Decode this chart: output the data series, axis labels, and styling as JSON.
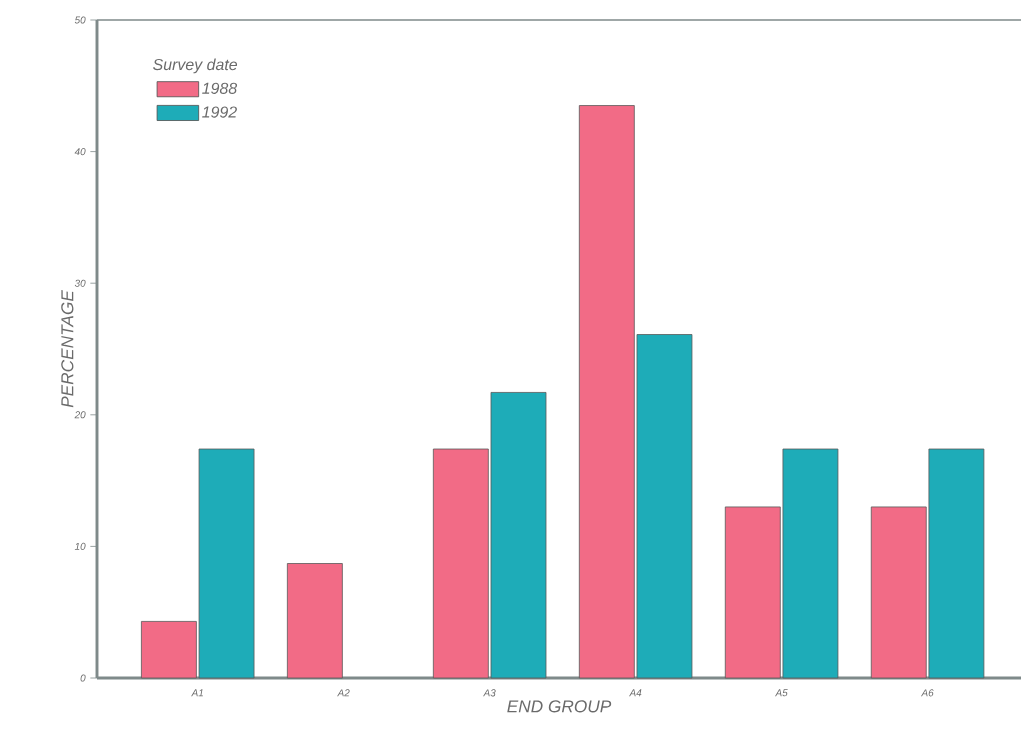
{
  "chart_data": {
    "type": "bar",
    "xlabel": "END GROUP",
    "ylabel": "PERCENTAGE",
    "legend_title": "Survey date",
    "legend": "top left",
    "categories": [
      "A1",
      "A2",
      "A3",
      "A4",
      "A5",
      "A6"
    ],
    "ylim": [
      0,
      50
    ],
    "yticks": [
      0,
      10,
      20,
      30,
      40,
      50
    ],
    "series": [
      {
        "name": "1988",
        "color": "#f26b86",
        "values": [
          4.3,
          8.7,
          17.4,
          43.5,
          13.0,
          13.0
        ]
      },
      {
        "name": "1992",
        "color": "#1eacb8",
        "values": [
          17.4,
          null,
          21.7,
          26.1,
          17.4,
          17.4
        ]
      }
    ]
  }
}
